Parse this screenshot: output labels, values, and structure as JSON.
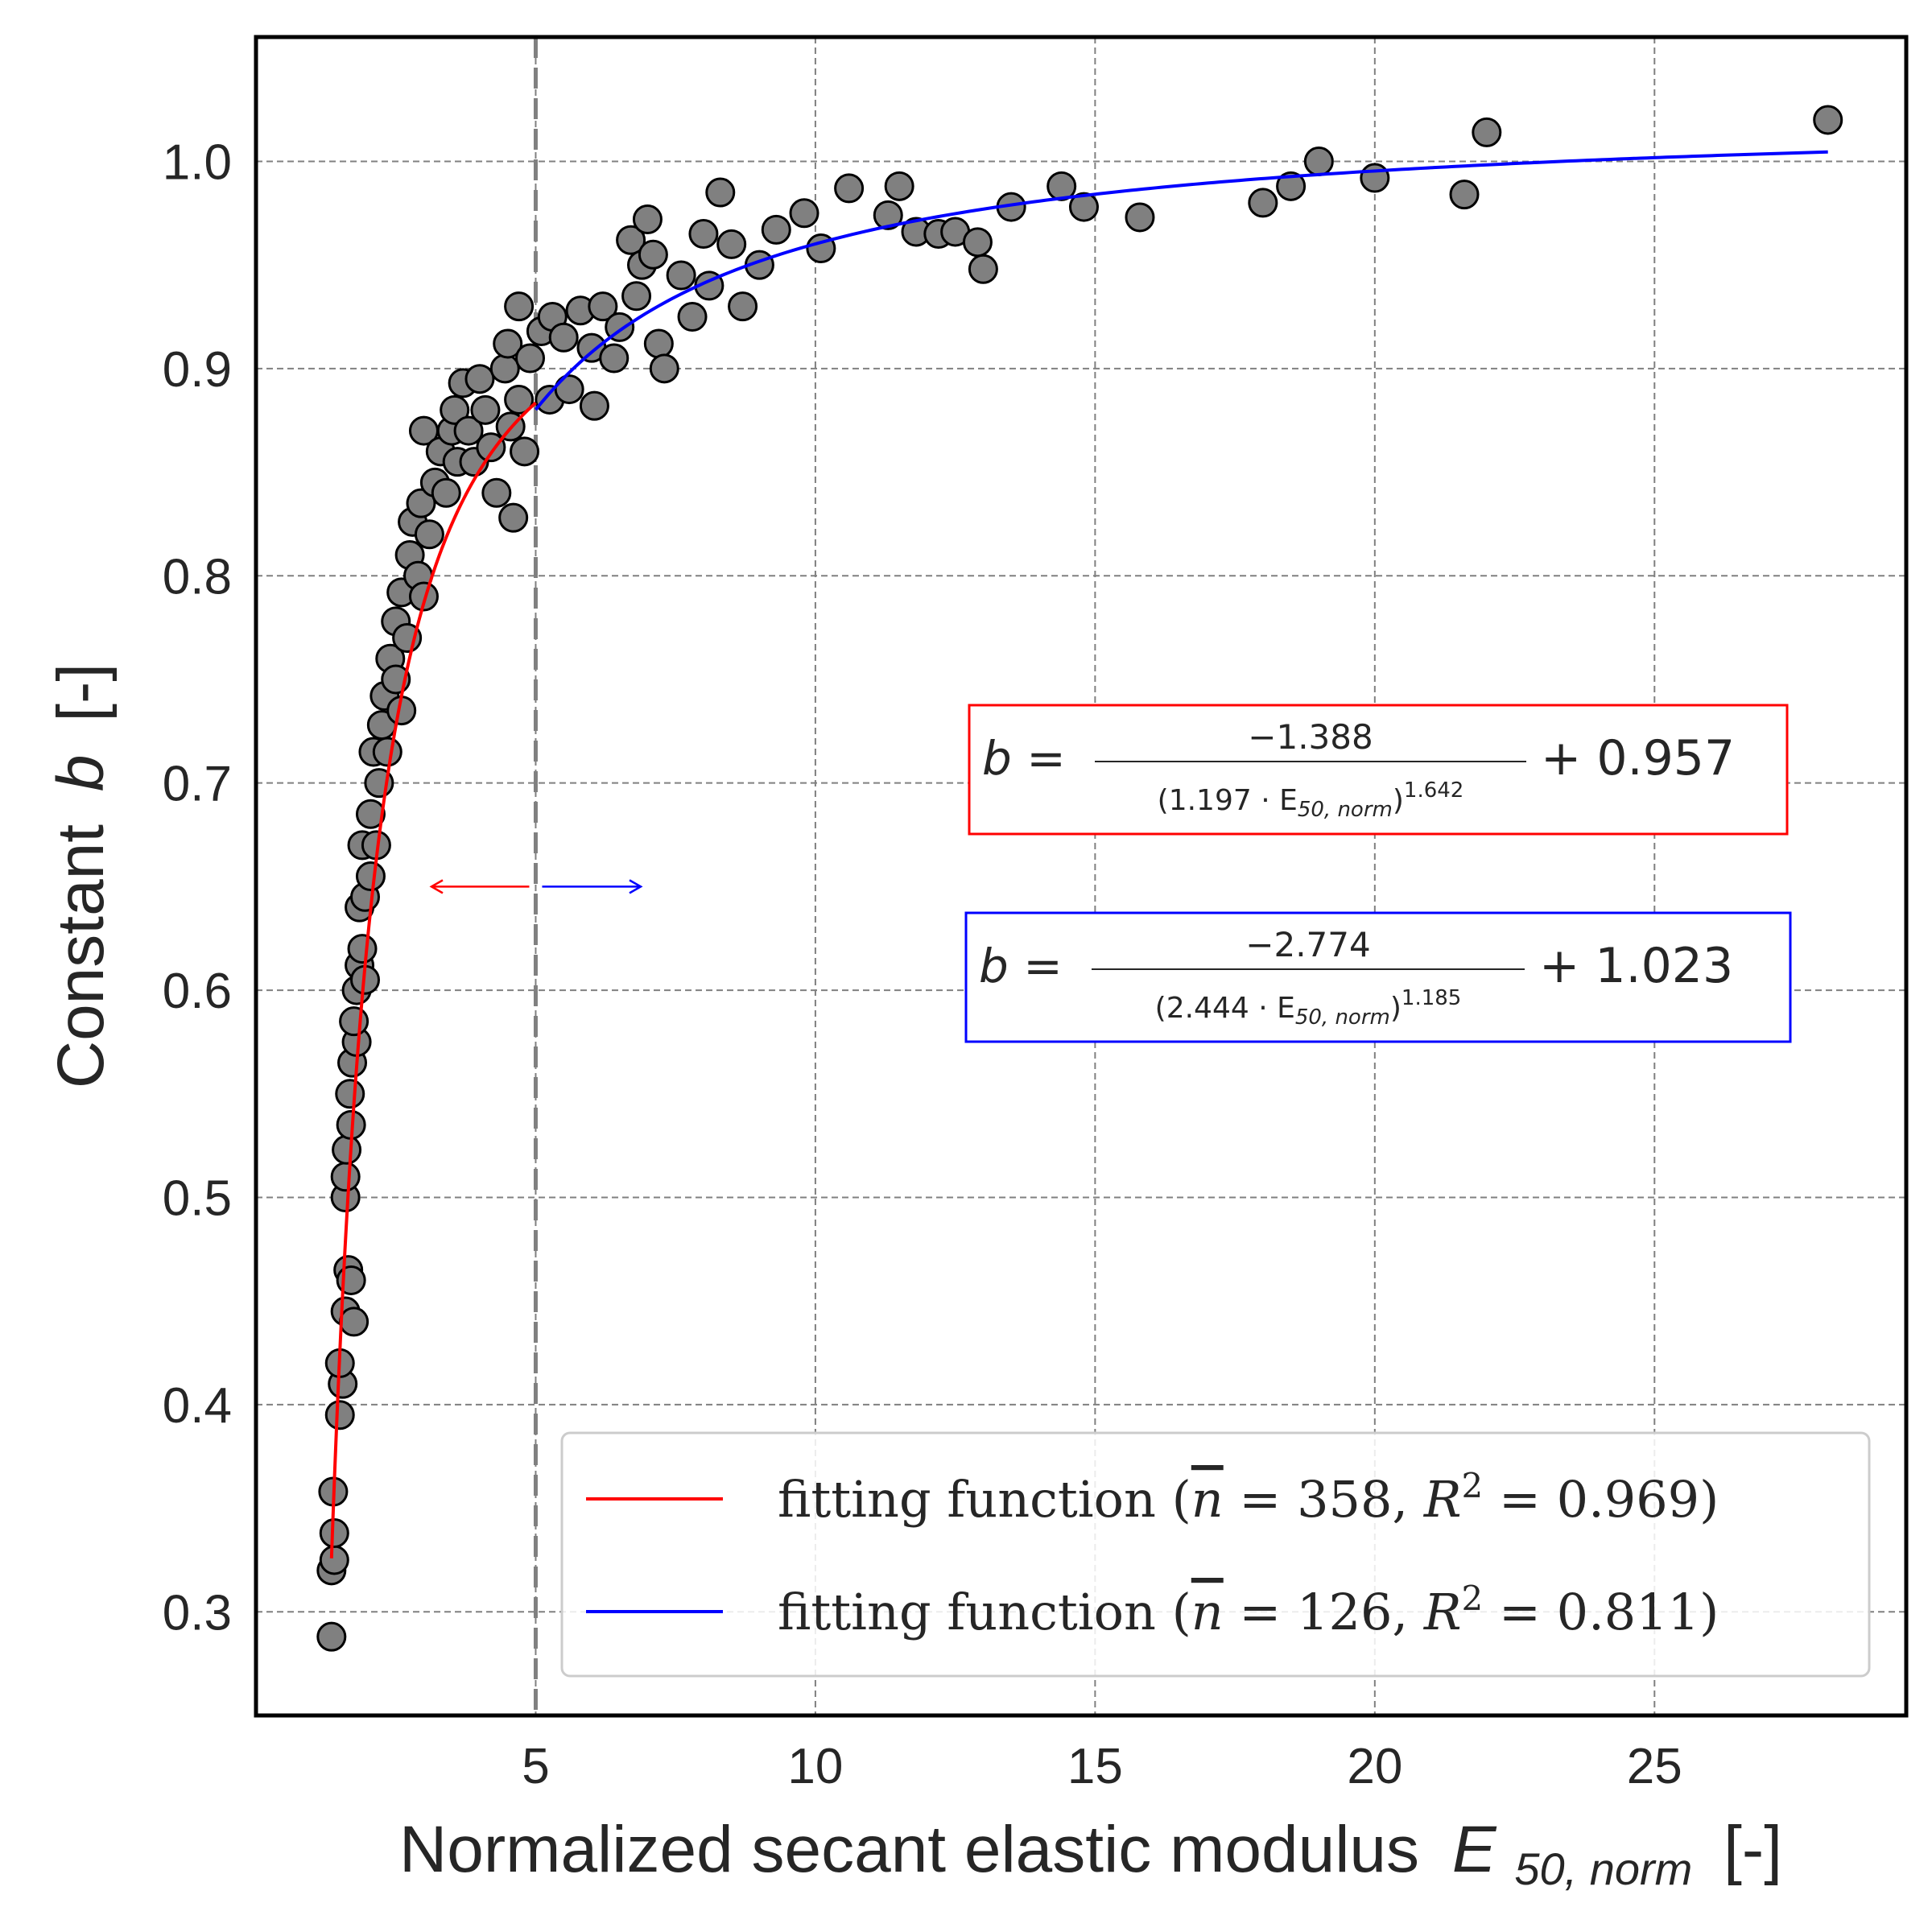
{
  "chart_data": {
    "type": "scatter",
    "xlabel": "Normalized secant elastic modulus",
    "xlabel_symbol": "E",
    "xlabel_subscript": "50, norm",
    "xlabel_unit": "[-]",
    "ylabel_prefix": "Constant",
    "ylabel_symbol": "b",
    "ylabel_unit": "[-]",
    "xlim": [
      0,
      29.5
    ],
    "ylim": [
      0.25,
      1.06
    ],
    "xticks": [
      5,
      10,
      15,
      20,
      25
    ],
    "yticks": [
      0.3,
      0.4,
      0.5,
      0.6,
      0.7,
      0.8,
      0.9,
      1.0
    ],
    "xtick_labels": [
      "5",
      "10",
      "15",
      "20",
      "25"
    ],
    "ytick_labels": [
      "0.3",
      "0.4",
      "0.5",
      "0.6",
      "0.7",
      "0.8",
      "0.9",
      "1.0"
    ],
    "grid": true,
    "legend_position": "bottom-right",
    "threshold_x": 5,
    "marker_color": "#808080",
    "scatter_points": [
      [
        1.35,
        0.288
      ],
      [
        1.35,
        0.32
      ],
      [
        1.4,
        0.325
      ],
      [
        1.4,
        0.338
      ],
      [
        1.38,
        0.358
      ],
      [
        1.5,
        0.395
      ],
      [
        1.55,
        0.41
      ],
      [
        1.5,
        0.42
      ],
      [
        1.6,
        0.445
      ],
      [
        1.65,
        0.465
      ],
      [
        1.75,
        0.44
      ],
      [
        1.7,
        0.46
      ],
      [
        1.6,
        0.5
      ],
      [
        1.6,
        0.51
      ],
      [
        1.62,
        0.523
      ],
      [
        1.7,
        0.535
      ],
      [
        1.68,
        0.55
      ],
      [
        1.72,
        0.565
      ],
      [
        1.8,
        0.575
      ],
      [
        1.75,
        0.585
      ],
      [
        1.8,
        0.6
      ],
      [
        1.85,
        0.612
      ],
      [
        1.9,
        0.62
      ],
      [
        1.95,
        0.605
      ],
      [
        1.85,
        0.64
      ],
      [
        1.95,
        0.645
      ],
      [
        2.05,
        0.655
      ],
      [
        1.9,
        0.67
      ],
      [
        2.05,
        0.685
      ],
      [
        2.15,
        0.67
      ],
      [
        2.2,
        0.7
      ],
      [
        2.1,
        0.715
      ],
      [
        2.25,
        0.728
      ],
      [
        2.35,
        0.715
      ],
      [
        2.3,
        0.742
      ],
      [
        2.4,
        0.76
      ],
      [
        2.5,
        0.75
      ],
      [
        2.6,
        0.735
      ],
      [
        2.5,
        0.778
      ],
      [
        2.6,
        0.792
      ],
      [
        2.7,
        0.77
      ],
      [
        2.75,
        0.81
      ],
      [
        2.8,
        0.826
      ],
      [
        2.9,
        0.8
      ],
      [
        3.0,
        0.79
      ],
      [
        2.95,
        0.835
      ],
      [
        3.1,
        0.82
      ],
      [
        3.2,
        0.845
      ],
      [
        3.0,
        0.87
      ],
      [
        3.3,
        0.86
      ],
      [
        3.4,
        0.84
      ],
      [
        3.5,
        0.87
      ],
      [
        3.6,
        0.855
      ],
      [
        3.55,
        0.88
      ],
      [
        3.7,
        0.893
      ],
      [
        3.8,
        0.87
      ],
      [
        3.9,
        0.855
      ],
      [
        4.0,
        0.895
      ],
      [
        4.1,
        0.88
      ],
      [
        4.2,
        0.862
      ],
      [
        4.3,
        0.84
      ],
      [
        4.45,
        0.9
      ],
      [
        4.55,
        0.872
      ],
      [
        4.7,
        0.885
      ],
      [
        4.8,
        0.86
      ],
      [
        4.6,
        0.828
      ],
      [
        4.5,
        0.912
      ],
      [
        4.7,
        0.93
      ],
      [
        4.9,
        0.905
      ],
      [
        5.1,
        0.918
      ],
      [
        5.25,
        0.885
      ],
      [
        5.3,
        0.925
      ],
      [
        5.5,
        0.915
      ],
      [
        5.6,
        0.89
      ],
      [
        5.8,
        0.928
      ],
      [
        6.0,
        0.91
      ],
      [
        6.05,
        0.882
      ],
      [
        6.2,
        0.93
      ],
      [
        6.4,
        0.905
      ],
      [
        6.5,
        0.92
      ],
      [
        6.8,
        0.935
      ],
      [
        6.7,
        0.962
      ],
      [
        6.9,
        0.95
      ],
      [
        7.0,
        0.972
      ],
      [
        7.1,
        0.955
      ],
      [
        7.2,
        0.912
      ],
      [
        7.3,
        0.9
      ],
      [
        7.6,
        0.945
      ],
      [
        7.8,
        0.925
      ],
      [
        8.0,
        0.965
      ],
      [
        8.1,
        0.94
      ],
      [
        8.3,
        0.985
      ],
      [
        8.5,
        0.96
      ],
      [
        8.7,
        0.93
      ],
      [
        9.0,
        0.95
      ],
      [
        9.3,
        0.967
      ],
      [
        9.8,
        0.975
      ],
      [
        10.1,
        0.958
      ],
      [
        10.6,
        0.987
      ],
      [
        11.3,
        0.974
      ],
      [
        11.5,
        0.988
      ],
      [
        11.8,
        0.966
      ],
      [
        12.2,
        0.965
      ],
      [
        12.5,
        0.966
      ],
      [
        12.9,
        0.961
      ],
      [
        13.0,
        0.948
      ],
      [
        13.5,
        0.978
      ],
      [
        14.4,
        0.988
      ],
      [
        14.8,
        0.978
      ],
      [
        15.8,
        0.973
      ],
      [
        18.0,
        0.98
      ],
      [
        18.5,
        0.988
      ],
      [
        19.0,
        1.0
      ],
      [
        20.0,
        0.992
      ],
      [
        21.6,
        0.984
      ],
      [
        22.0,
        1.014
      ],
      [
        28.1,
        1.02
      ]
    ],
    "series": [
      {
        "name": "fitting function (n̄ = 358, R² = 0.969)",
        "color": "#ff0000",
        "a": -1.388,
        "c": 1.197,
        "p": 1.642,
        "d": 0.957,
        "x_from": 1.35,
        "x_to": 5
      },
      {
        "name": "fitting function (n̄ = 126, R² = 0.811)",
        "color": "#0000ff",
        "a": -2.774,
        "c": 2.444,
        "p": 1.185,
        "d": 1.023,
        "x_from": 5,
        "x_to": 28.1
      }
    ],
    "equations": [
      {
        "lhs": "b =",
        "numerator": "−1.388",
        "den_base": "(1.197 · E",
        "den_sub": "50, norm",
        "den_close": ")",
        "den_exp": "1.642",
        "tail": "+ 0.957",
        "color": "#ff0000"
      },
      {
        "lhs": "b =",
        "numerator": "−2.774",
        "den_base": "(2.444 · E",
        "den_sub": "50, norm",
        "den_close": ")",
        "den_exp": "1.185",
        "tail": "+ 1.023",
        "color": "#0000ff"
      }
    ],
    "arrows": [
      {
        "color": "#ff0000",
        "direction": "left",
        "y": 0.65
      },
      {
        "color": "#0000ff",
        "direction": "right",
        "y": 0.65
      }
    ],
    "legend": [
      {
        "prefix": "fitting function (",
        "n_symbol": "n",
        "n_value": " = 358, ",
        "r_symbol": "R",
        "r_exp": "2",
        "r_value": " = 0.969)",
        "color": "#ff0000"
      },
      {
        "prefix": "fitting function (",
        "n_symbol": "n",
        "n_value": " = 126, ",
        "r_symbol": "R",
        "r_exp": "2",
        "r_value": " = 0.811)",
        "color": "#0000ff"
      }
    ]
  }
}
